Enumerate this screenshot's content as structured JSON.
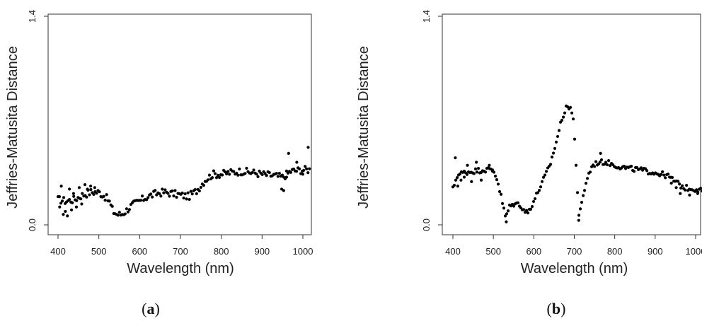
{
  "panels": [
    {
      "caption_open": "(",
      "caption_letter": "a",
      "caption_close": ")"
    },
    {
      "caption_open": "(",
      "caption_letter": "b",
      "caption_close": ")"
    }
  ],
  "chart_data": [
    {
      "type": "scatter",
      "xlabel": "Wavelength (nm)",
      "ylabel": "Jeffries-Matusita Distance",
      "xlim": [
        400,
        1000
      ],
      "ylim": [
        0.0,
        1.4
      ],
      "xticks": [
        400,
        500,
        600,
        700,
        800,
        900,
        1000
      ],
      "yticks": [
        0.0,
        1.4
      ],
      "ytick_labels": [
        "0.0",
        "1.4"
      ],
      "marker_color": "#000000",
      "anchors": [
        [
          400,
          0.17
        ],
        [
          420,
          0.16
        ],
        [
          440,
          0.17
        ],
        [
          460,
          0.2
        ],
        [
          480,
          0.22
        ],
        [
          500,
          0.22
        ],
        [
          515,
          0.19
        ],
        [
          525,
          0.16
        ],
        [
          535,
          0.09
        ],
        [
          545,
          0.07
        ],
        [
          555,
          0.07
        ],
        [
          565,
          0.09
        ],
        [
          580,
          0.13
        ],
        [
          600,
          0.16
        ],
        [
          620,
          0.19
        ],
        [
          640,
          0.21
        ],
        [
          660,
          0.22
        ],
        [
          680,
          0.21
        ],
        [
          700,
          0.2
        ],
        [
          720,
          0.19
        ],
        [
          740,
          0.23
        ],
        [
          760,
          0.3
        ],
        [
          780,
          0.34
        ],
        [
          800,
          0.34
        ],
        [
          820,
          0.35
        ],
        [
          850,
          0.36
        ],
        [
          880,
          0.35
        ],
        [
          900,
          0.34
        ],
        [
          930,
          0.33
        ],
        [
          950,
          0.32
        ],
        [
          970,
          0.36
        ],
        [
          1000,
          0.37
        ],
        [
          1020,
          0.37
        ]
      ],
      "spread": 0.025,
      "extras": [
        [
          404,
          0.12
        ],
        [
          408,
          0.26
        ],
        [
          413,
          0.07
        ],
        [
          418,
          0.09
        ],
        [
          423,
          0.06
        ],
        [
          428,
          0.24
        ],
        [
          433,
          0.1
        ],
        [
          438,
          0.21
        ],
        [
          445,
          0.12
        ],
        [
          452,
          0.25
        ],
        [
          458,
          0.14
        ],
        [
          466,
          0.27
        ],
        [
          472,
          0.24
        ],
        [
          480,
          0.26
        ],
        [
          490,
          0.25
        ],
        [
          948,
          0.24
        ],
        [
          953,
          0.23
        ],
        [
          960,
          0.32
        ],
        [
          965,
          0.48
        ],
        [
          985,
          0.42
        ],
        [
          1000,
          0.34
        ],
        [
          1013,
          0.52
        ]
      ]
    },
    {
      "type": "scatter",
      "xlabel": "Wavelength (nm)",
      "ylabel": "Jeffries-Matusita Distance",
      "xlim": [
        400,
        1000
      ],
      "ylim": [
        0.0,
        1.4
      ],
      "xticks": [
        400,
        500,
        600,
        700,
        800,
        900,
        1000
      ],
      "yticks": [
        0.0,
        1.4
      ],
      "ytick_labels": [
        "0.0",
        "1.4"
      ],
      "marker_color": "#000000",
      "anchors": [
        [
          400,
          0.24
        ],
        [
          410,
          0.33
        ],
        [
          425,
          0.35
        ],
        [
          450,
          0.36
        ],
        [
          475,
          0.37
        ],
        [
          500,
          0.37
        ],
        [
          510,
          0.3
        ],
        [
          520,
          0.18
        ],
        [
          530,
          0.05
        ],
        [
          540,
          0.12
        ],
        [
          550,
          0.14
        ],
        [
          565,
          0.14
        ],
        [
          575,
          0.1
        ],
        [
          585,
          0.08
        ],
        [
          600,
          0.16
        ],
        [
          620,
          0.28
        ],
        [
          640,
          0.4
        ],
        [
          655,
          0.55
        ],
        [
          670,
          0.72
        ],
        [
          680,
          0.78
        ],
        [
          690,
          0.8
        ],
        [
          698,
          0.7
        ],
        [
          704,
          0.44
        ],
        [
          708,
          0.22
        ],
        [
          712,
          0.05
        ],
        [
          720,
          0.16
        ],
        [
          730,
          0.3
        ],
        [
          745,
          0.4
        ],
        [
          760,
          0.42
        ],
        [
          780,
          0.42
        ],
        [
          800,
          0.4
        ],
        [
          830,
          0.38
        ],
        [
          860,
          0.37
        ],
        [
          900,
          0.35
        ],
        [
          930,
          0.33
        ],
        [
          950,
          0.29
        ],
        [
          970,
          0.25
        ],
        [
          1000,
          0.24
        ],
        [
          1020,
          0.23
        ]
      ],
      "spread": 0.018,
      "extras": [
        [
          406,
          0.45
        ],
        [
          412,
          0.26
        ],
        [
          420,
          0.3
        ],
        [
          428,
          0.32
        ],
        [
          436,
          0.4
        ],
        [
          446,
          0.29
        ],
        [
          458,
          0.42
        ],
        [
          470,
          0.3
        ],
        [
          490,
          0.4
        ],
        [
          498,
          0.36
        ],
        [
          532,
          0.02
        ],
        [
          711,
          0.03
        ],
        [
          765,
          0.48
        ],
        [
          940,
          0.28
        ],
        [
          952,
          0.25
        ],
        [
          962,
          0.21
        ],
        [
          985,
          0.2
        ],
        [
          1005,
          0.21
        ]
      ]
    }
  ]
}
